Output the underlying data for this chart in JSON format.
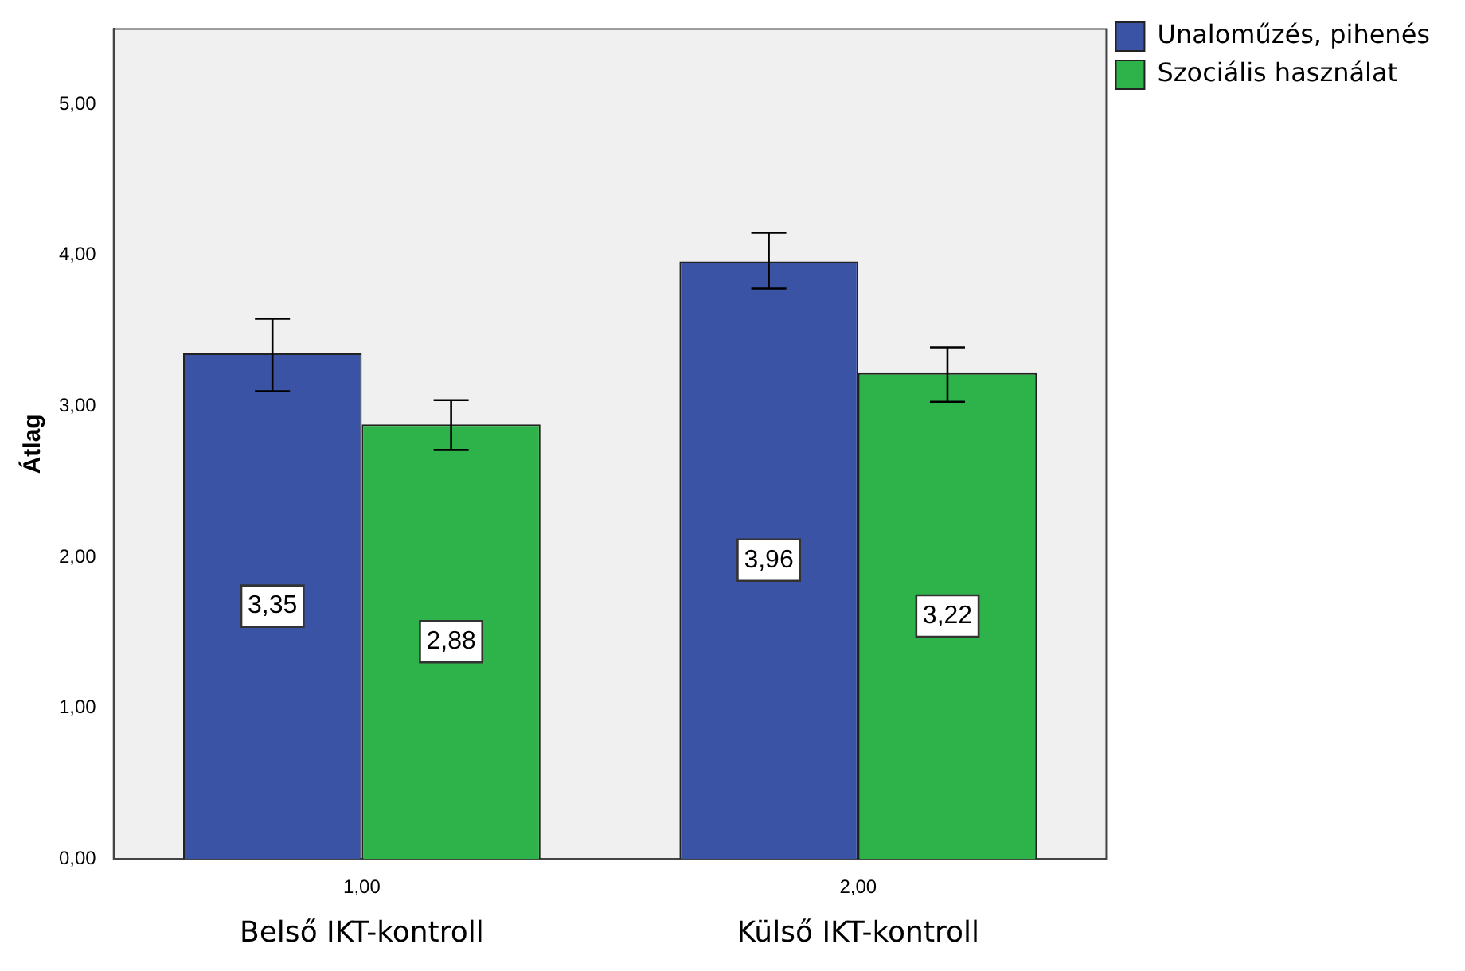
{
  "chart_data": {
    "type": "bar",
    "ylabel": "Átlag",
    "categories": [
      "1,00",
      "2,00"
    ],
    "series": [
      {
        "name": "Unaloműzés, pihenés",
        "color": "#3a53a4",
        "values": [
          3.35,
          3.96
        ],
        "errors": [
          [
            3.1,
            3.58
          ],
          [
            3.78,
            4.15
          ]
        ],
        "value_labels": [
          "3,35",
          "3,96"
        ]
      },
      {
        "name": "Szociális használat",
        "color": "#2db34a",
        "values": [
          2.88,
          3.22
        ],
        "errors": [
          [
            2.71,
            3.04
          ],
          [
            3.03,
            3.39
          ]
        ],
        "value_labels": [
          "2,88",
          "3,22"
        ]
      }
    ],
    "ylim": [
      0,
      5.5
    ],
    "yticks": [
      {
        "value": 0,
        "label": "0,00"
      },
      {
        "value": 1,
        "label": "1,00"
      },
      {
        "value": 2,
        "label": "2,00"
      },
      {
        "value": 3,
        "label": "3,00"
      },
      {
        "value": 4,
        "label": "4,00"
      },
      {
        "value": 5,
        "label": "5,00"
      }
    ],
    "grid": false,
    "legend": "top right",
    "annotations": [
      "Belső IKT-kontroll",
      "Külső IKT-kontroll"
    ]
  }
}
